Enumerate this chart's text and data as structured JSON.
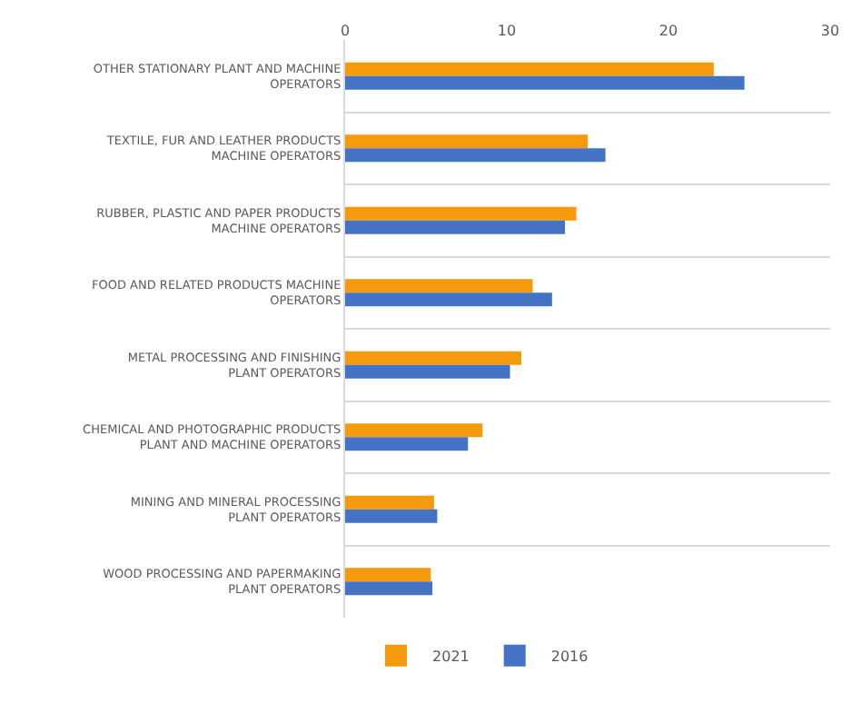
{
  "chart_data": {
    "type": "bar",
    "orientation": "horizontal",
    "categories": [
      "OTHER STATIONARY PLANT AND MACHINE OPERATORS",
      "TEXTILE, FUR AND LEATHER PRODUCTS MACHINE OPERATORS",
      "RUBBER, PLASTIC AND PAPER PRODUCTS MACHINE OPERATORS",
      "FOOD AND RELATED PRODUCTS MACHINE OPERATORS",
      "METAL PROCESSING AND FINISHING PLANT OPERATORS",
      "CHEMICAL AND PHOTOGRAPHIC PRODUCTS PLANT AND MACHINE OPERATORS",
      "MINING AND MINERAL PROCESSING PLANT OPERATORS",
      "WOOD PROCESSING AND PAPERMAKING PLANT OPERATORS"
    ],
    "series": [
      {
        "name": "2021",
        "color": "#f59a0c",
        "values": [
          22.8,
          15.0,
          14.3,
          11.6,
          10.9,
          8.5,
          5.5,
          5.3
        ]
      },
      {
        "name": "2016",
        "color": "#4472c4",
        "values": [
          24.7,
          16.1,
          13.6,
          12.8,
          10.2,
          7.6,
          5.7,
          5.4
        ]
      }
    ],
    "xlim": [
      0,
      30
    ],
    "xticks": [
      0,
      10,
      20,
      30
    ],
    "grid": "y",
    "legend": "bottom"
  }
}
